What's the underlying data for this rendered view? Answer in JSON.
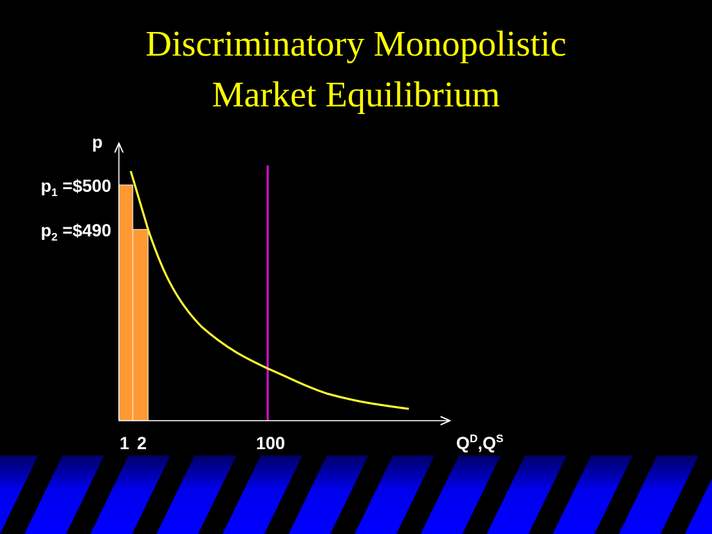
{
  "title": [
    "Discriminatory Monopolistic",
    "Market Equilibrium"
  ],
  "y_axis": {
    "label": "p",
    "prices": [
      {
        "symbol": "p",
        "subscript": "1",
        "text": " =$500"
      },
      {
        "symbol": "p",
        "subscript": "2",
        "text": " =$490"
      }
    ]
  },
  "x_axis": {
    "ticks": [
      "1",
      "2",
      "100"
    ],
    "label": {
      "parts": [
        "Q",
        "D",
        ",Q",
        "S"
      ]
    }
  }
}
